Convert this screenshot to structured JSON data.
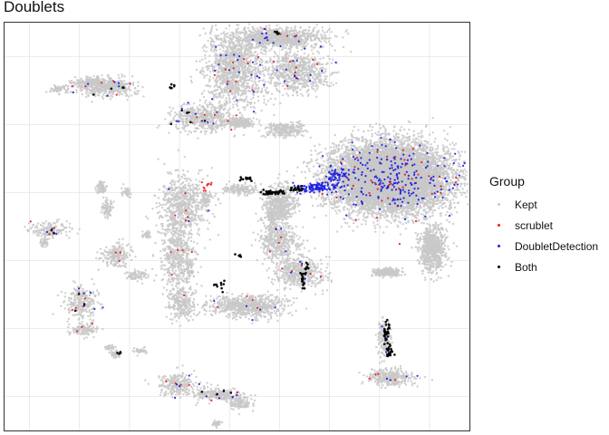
{
  "chart_data": {
    "type": "scatter",
    "title": "Doublets",
    "xlabel": "",
    "ylabel": "",
    "grid": true,
    "axis_tick_labels": false,
    "legend": {
      "title": "Group",
      "placement": "right",
      "entries": [
        {
          "name": "Kept",
          "color": "#c8c8c8"
        },
        {
          "name": "scrublet",
          "color": "#e8201f"
        },
        {
          "name": "DoubletDetection",
          "color": "#2020e0"
        },
        {
          "name": "Both",
          "color": "#000000"
        }
      ]
    },
    "series": [
      {
        "name": "Kept",
        "color": "#c8c8c8",
        "clusters": [
          [
            7.2,
            2.45,
            1.05,
            0.9,
            9000
          ],
          [
            8.05,
            0.35,
            0.24,
            0.62,
            700
          ],
          [
            7.15,
            -0.35,
            0.22,
            0.1,
            300
          ],
          [
            4.1,
            5.6,
            0.55,
            1.1,
            1200
          ],
          [
            5.35,
            5.55,
            0.6,
            0.55,
            700
          ],
          [
            4.95,
            6.55,
            0.8,
            0.25,
            900
          ],
          [
            3.45,
            4.2,
            0.55,
            0.35,
            500
          ],
          [
            4.2,
            4.05,
            0.25,
            0.12,
            200
          ],
          [
            5.1,
            3.85,
            0.35,
            0.2,
            250
          ],
          [
            3.05,
            1.65,
            0.45,
            0.8,
            600
          ],
          [
            2.95,
            0.2,
            0.3,
            1.1,
            500
          ],
          [
            3.05,
            -1.3,
            0.25,
            0.45,
            250
          ],
          [
            5.0,
            1.65,
            0.3,
            0.55,
            500
          ],
          [
            5.0,
            0.55,
            0.35,
            0.45,
            400
          ],
          [
            5.4,
            -0.35,
            0.45,
            0.4,
            450
          ],
          [
            4.35,
            -1.35,
            0.7,
            0.3,
            700
          ],
          [
            1.55,
            5.1,
            0.55,
            0.25,
            400
          ],
          [
            1.2,
            5.25,
            0.3,
            0.12,
            150
          ],
          [
            0.6,
            5.05,
            0.2,
            0.1,
            60
          ],
          [
            0.4,
            0.9,
            0.35,
            0.2,
            150
          ],
          [
            1.75,
            0.15,
            0.25,
            0.3,
            200
          ],
          [
            1.55,
            1.55,
            0.1,
            0.25,
            80
          ],
          [
            1.45,
            2.15,
            0.1,
            0.2,
            60
          ],
          [
            1.95,
            2.0,
            0.08,
            0.15,
            40
          ],
          [
            0.3,
            0.55,
            0.08,
            0.15,
            40
          ],
          [
            1.05,
            -1.25,
            0.3,
            0.5,
            250
          ],
          [
            1.1,
            -2.05,
            0.25,
            0.15,
            120
          ],
          [
            1.7,
            -2.75,
            0.1,
            0.1,
            40
          ],
          [
            2.2,
            -2.65,
            0.12,
            0.08,
            40
          ],
          [
            2.95,
            -3.65,
            0.3,
            0.3,
            250
          ],
          [
            3.75,
            -3.95,
            0.45,
            0.15,
            250
          ],
          [
            4.2,
            -4.2,
            0.22,
            0.18,
            120
          ],
          [
            3.75,
            -4.8,
            0.08,
            0.08,
            30
          ],
          [
            7.1,
            -2.3,
            0.12,
            0.5,
            150
          ],
          [
            7.25,
            -3.45,
            0.4,
            0.22,
            300
          ],
          [
            3.55,
            1.8,
            0.1,
            0.18,
            60
          ],
          [
            4.2,
            2.1,
            0.3,
            0.12,
            150
          ],
          [
            3.2,
            -0.25,
            0.1,
            0.3,
            60
          ],
          [
            2.15,
            -0.45,
            0.2,
            0.15,
            80
          ],
          [
            4.85,
            1.2,
            0.1,
            0.4,
            100
          ],
          [
            1.6,
            -2.55,
            0.08,
            0.06,
            25
          ],
          [
            2.35,
            0.75,
            0.08,
            0.1,
            30
          ]
        ]
      },
      {
        "name": "scrublet",
        "color": "#e8201f",
        "clusters": [
          [
            4.1,
            5.6,
            0.55,
            1.1,
            12
          ],
          [
            5.35,
            5.55,
            0.6,
            0.55,
            8
          ],
          [
            7.2,
            2.45,
            1.05,
            0.9,
            45
          ],
          [
            3.45,
            4.2,
            0.55,
            0.35,
            6
          ],
          [
            3.55,
            2.2,
            0.12,
            0.2,
            10
          ],
          [
            3.05,
            1.65,
            0.45,
            0.8,
            5
          ],
          [
            2.95,
            0.2,
            0.3,
            1.1,
            6
          ],
          [
            1.55,
            5.1,
            0.55,
            0.25,
            6
          ],
          [
            1.05,
            -1.25,
            0.3,
            0.5,
            5
          ],
          [
            2.95,
            -3.65,
            0.3,
            0.3,
            4
          ],
          [
            3.75,
            -3.95,
            0.45,
            0.15,
            4
          ],
          [
            7.25,
            -3.45,
            0.4,
            0.22,
            4
          ],
          [
            4.35,
            -1.35,
            0.7,
            0.3,
            4
          ],
          [
            5.4,
            -0.35,
            0.45,
            0.4,
            5
          ],
          [
            5.0,
            0.55,
            0.35,
            0.45,
            4
          ],
          [
            0.4,
            0.9,
            0.35,
            0.2,
            3
          ],
          [
            1.75,
            0.15,
            0.25,
            0.3,
            3
          ],
          [
            1.1,
            -2.05,
            0.25,
            0.15,
            3
          ],
          [
            4.95,
            6.55,
            0.8,
            0.25,
            4
          ]
        ]
      },
      {
        "name": "DoubletDetection",
        "color": "#2020e0",
        "clusters": [
          [
            7.2,
            2.45,
            1.05,
            0.9,
            220
          ],
          [
            5.7,
            2.15,
            0.35,
            0.12,
            110
          ],
          [
            6.15,
            2.5,
            0.2,
            0.25,
            60
          ],
          [
            4.1,
            5.6,
            0.55,
            1.1,
            20
          ],
          [
            5.35,
            5.55,
            0.6,
            0.55,
            15
          ],
          [
            4.95,
            6.55,
            0.8,
            0.25,
            15
          ],
          [
            3.45,
            4.2,
            0.55,
            0.35,
            8
          ],
          [
            7.1,
            -2.3,
            0.12,
            0.5,
            4
          ],
          [
            7.25,
            -3.45,
            0.4,
            0.22,
            4
          ],
          [
            1.05,
            -1.25,
            0.3,
            0.5,
            6
          ],
          [
            2.95,
            -3.65,
            0.3,
            0.3,
            5
          ],
          [
            3.75,
            -3.95,
            0.45,
            0.15,
            5
          ],
          [
            4.35,
            -1.35,
            0.7,
            0.3,
            5
          ],
          [
            5.4,
            -0.35,
            0.45,
            0.4,
            4
          ],
          [
            1.55,
            5.1,
            0.55,
            0.25,
            6
          ],
          [
            0.4,
            0.9,
            0.35,
            0.2,
            4
          ],
          [
            3.05,
            1.65,
            0.45,
            0.8,
            3
          ],
          [
            5.0,
            0.55,
            0.35,
            0.45,
            3
          ]
        ]
      },
      {
        "name": "Both",
        "color": "#000000",
        "clusters": [
          [
            4.85,
            2.0,
            0.25,
            0.07,
            40
          ],
          [
            4.35,
            2.4,
            0.12,
            0.06,
            14
          ],
          [
            5.35,
            2.1,
            0.12,
            0.08,
            18
          ],
          [
            7.15,
            -2.2,
            0.06,
            0.45,
            35
          ],
          [
            7.2,
            -2.7,
            0.08,
            0.12,
            18
          ],
          [
            5.45,
            -0.55,
            0.06,
            0.28,
            18
          ],
          [
            5.55,
            -0.2,
            0.05,
            0.1,
            8
          ],
          [
            4.95,
            6.7,
            0.05,
            0.05,
            6
          ],
          [
            2.85,
            5.1,
            0.06,
            0.08,
            6
          ],
          [
            3.8,
            -0.8,
            0.2,
            0.2,
            10
          ],
          [
            4.2,
            0.15,
            0.08,
            0.08,
            6
          ],
          [
            3.05,
            4.2,
            0.3,
            0.3,
            6
          ],
          [
            1.55,
            5.1,
            0.55,
            0.25,
            4
          ],
          [
            1.8,
            -2.7,
            0.06,
            0.05,
            4
          ],
          [
            3.75,
            -3.95,
            0.3,
            0.1,
            4
          ],
          [
            1.05,
            -1.25,
            0.25,
            0.4,
            3
          ],
          [
            0.4,
            0.9,
            0.3,
            0.15,
            2
          ]
        ]
      }
    ]
  }
}
